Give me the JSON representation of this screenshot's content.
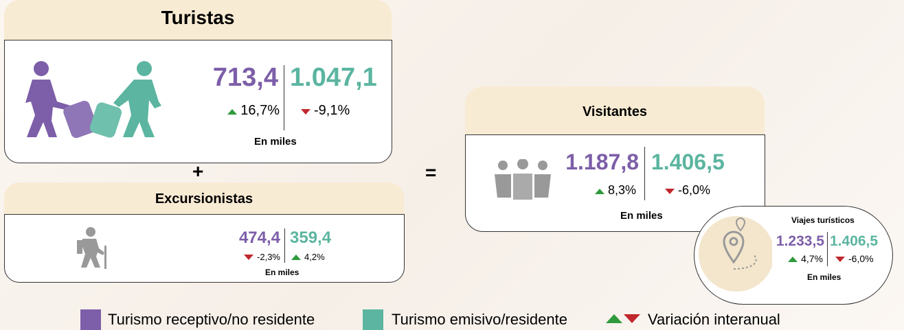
{
  "turistas": {
    "title": "Turistas",
    "receptivo": "713,4",
    "emisivo": "1.047,1",
    "var_receptivo": "16,7%",
    "var_emisivo": "-9,1%",
    "unit": "En miles"
  },
  "plus": "+",
  "excursionistas": {
    "title": "Excursionistas",
    "receptivo": "474,4",
    "emisivo": "359,4",
    "var_receptivo": "-2,3%",
    "var_emisivo": "4,2%",
    "unit": "En miles"
  },
  "equals": "=",
  "visitantes": {
    "title": "Visitantes",
    "receptivo": "1.187,8",
    "emisivo": "1.406,5",
    "var_receptivo": "8,3%",
    "var_emisivo": "-6,0%",
    "unit": "En miles"
  },
  "viajes": {
    "title": "Viajes turísticos",
    "receptivo": "1.233,5",
    "emisivo": "1.406,5",
    "var_receptivo": "4,7%",
    "var_emisivo": "-6,0%",
    "unit": "En miles"
  },
  "legend": {
    "receptivo": "Turismo receptivo/no residente",
    "emisivo": "Turismo emisivo/residente",
    "variacion": "Variación interanual"
  }
}
